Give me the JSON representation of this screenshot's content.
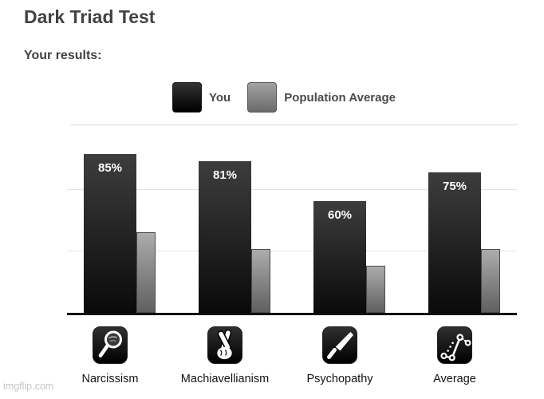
{
  "page": {
    "title": "Dark Triad Test",
    "subtitle": "Your results:",
    "watermark": "imgflip.com"
  },
  "legend": {
    "you": "You",
    "population": "Population Average"
  },
  "chart_data": {
    "type": "bar",
    "title": "Dark Triad Test results",
    "categories": [
      "Narcissism",
      "Machiavellianism",
      "Psychopathy",
      "Average"
    ],
    "series": [
      {
        "name": "You",
        "values": [
          85,
          81,
          60,
          75
        ],
        "labels": [
          "85%",
          "81%",
          "60%",
          "75%"
        ]
      },
      {
        "name": "Population Average",
        "values": [
          43,
          34,
          25,
          34
        ],
        "labels": [
          "",
          "",
          "",
          ""
        ]
      }
    ],
    "ylim": [
      0,
      100
    ],
    "gridlines_percent": [
      33,
      66
    ],
    "grid": "horizontal-light",
    "legend_position": "top-center",
    "value_labels": "shown inside 'You' bars only",
    "category_icons": [
      "hand-mirror",
      "crossed-fingers",
      "knife",
      "line-graph"
    ]
  },
  "colors": {
    "heading_text": "#3f4347",
    "legend_text": "#4a4a4a",
    "category_text": "#141414",
    "value_label_text": "#ffffff",
    "you_bar_top": "#3d3d3d",
    "you_bar_bottom": "#0a0a0a",
    "population_bar_top": "#acacac",
    "population_bar_bottom": "#606060",
    "gridline": "#e3e3e3",
    "axis_line": "#111111",
    "divider": "#d8d8d8",
    "icon_tile": "#000000",
    "watermark_text": "#c4c4c4"
  }
}
